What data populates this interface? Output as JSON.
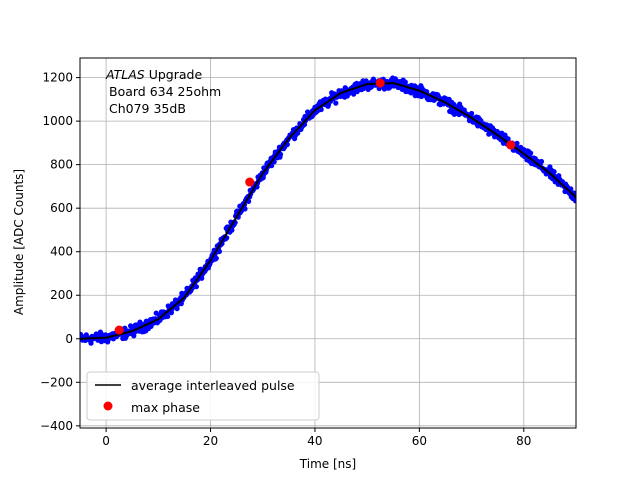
{
  "chart_data": {
    "type": "scatter",
    "xlabel": "Time [ns]",
    "ylabel": "Amplitude [ADC Counts]",
    "xlim": [
      -5,
      90
    ],
    "ylim": [
      -410,
      1290
    ],
    "x_ticks": [
      0,
      20,
      40,
      60,
      80
    ],
    "y_ticks": [
      -400,
      -200,
      0,
      200,
      400,
      600,
      800,
      1000,
      1200
    ],
    "grid": true,
    "annotation": {
      "line1_italic": "ATLAS",
      "line1_rest": " Upgrade",
      "line2": "Board 634 25ohm",
      "line3": "Ch079 35dB"
    },
    "legend": {
      "placement": "lower-left",
      "entries": [
        {
          "label": "average interleaved pulse",
          "marker": "line",
          "color": "#000000"
        },
        {
          "label": "max phase",
          "marker": "dot",
          "color": "#ff0000"
        }
      ]
    },
    "series": [
      {
        "role": "samples",
        "color": "#0000ff",
        "noise": 15,
        "x_range": [
          -5,
          90
        ],
        "step": 0.1
      },
      {
        "name": "average interleaved pulse",
        "color": "#000000",
        "x": [
          -5,
          0,
          5,
          10,
          15,
          20,
          25,
          30,
          35,
          40,
          45,
          50,
          55,
          60,
          65,
          70,
          75,
          80,
          85,
          90
        ],
        "y": [
          0,
          5,
          35,
          90,
          190,
          360,
          560,
          760,
          920,
          1050,
          1130,
          1170,
          1175,
          1140,
          1085,
          1015,
          935,
          850,
          760,
          650
        ]
      },
      {
        "name": "max phase",
        "color": "#ff0000",
        "x": [
          2.5,
          27.5,
          52.5,
          77.5
        ],
        "y": [
          40,
          720,
          1175,
          890
        ]
      }
    ]
  }
}
